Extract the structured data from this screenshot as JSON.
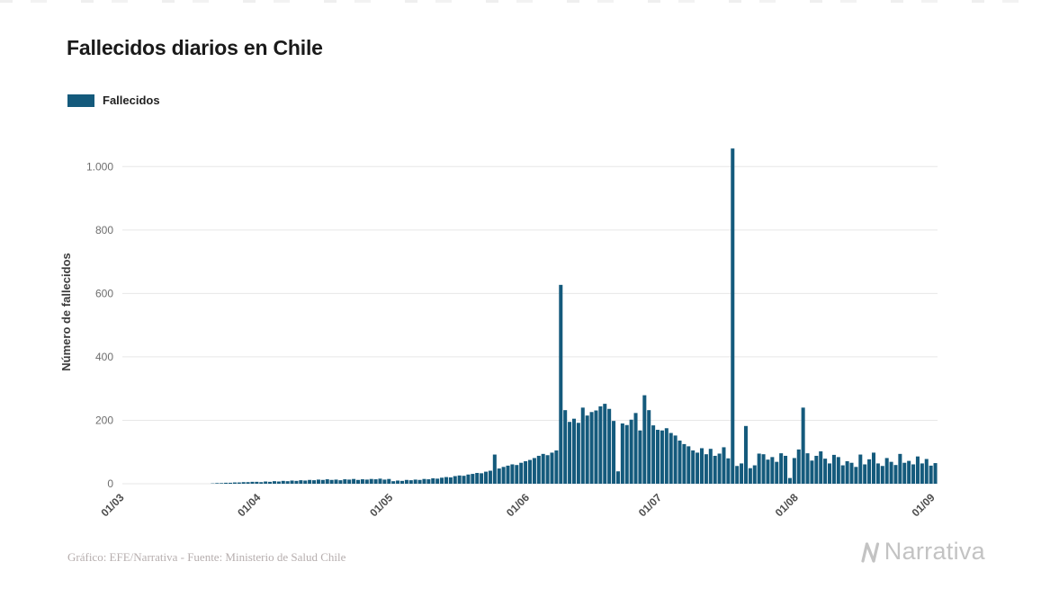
{
  "page": {
    "title": "Fallecidos diarios en Chile",
    "footer_credit": "Gráfico: EFE/Narrativa - Fuente: Ministerio de Salud Chile",
    "logo_text": "Narrativa"
  },
  "legend": {
    "label": "Fallecidos",
    "color": "#145a7c"
  },
  "chart_data": {
    "type": "bar",
    "title": "Fallecidos diarios en Chile",
    "xlabel": "",
    "ylabel": "Número de fallecidos",
    "series_name": "Fallecidos",
    "bar_color": "#145a7c",
    "grid": "horizontal",
    "legend_position": "top-left",
    "x_unit": "day",
    "x_start": "01/03",
    "x_end": "01/09",
    "ylim": [
      0,
      1100
    ],
    "yticks": [
      0,
      200,
      400,
      600,
      800,
      1000
    ],
    "ytick_labels": [
      "0",
      "200",
      "400",
      "600",
      "800",
      "1.000"
    ],
    "xtick_positions": [
      0,
      31,
      61,
      92,
      122,
      153,
      184
    ],
    "xtick_labels": [
      "01/03",
      "01/04",
      "01/05",
      "01/06",
      "01/07",
      "01/08",
      "01/09"
    ],
    "values": [
      0,
      0,
      0,
      0,
      0,
      0,
      0,
      0,
      0,
      0,
      0,
      0,
      0,
      0,
      0,
      0,
      0,
      0,
      0,
      0,
      1,
      2,
      2,
      3,
      3,
      4,
      4,
      5,
      5,
      6,
      6,
      5,
      7,
      6,
      8,
      7,
      9,
      8,
      10,
      9,
      11,
      10,
      12,
      11,
      13,
      12,
      14,
      12,
      13,
      11,
      14,
      13,
      15,
      12,
      14,
      13,
      15,
      14,
      16,
      13,
      15,
      8,
      10,
      9,
      12,
      11,
      13,
      12,
      15,
      14,
      17,
      16,
      19,
      21,
      20,
      24,
      26,
      25,
      29,
      31,
      34,
      33,
      38,
      41,
      92,
      48,
      53,
      57,
      61,
      59,
      66,
      71,
      75,
      81,
      88,
      94,
      90,
      98,
      105,
      627,
      232,
      195,
      205,
      192,
      240,
      215,
      226,
      231,
      244,
      252,
      236,
      198,
      39,
      190,
      185,
      202,
      223,
      168,
      279,
      232,
      184,
      170,
      168,
      175,
      160,
      152,
      136,
      125,
      118,
      105,
      98,
      112,
      93,
      110,
      88,
      95,
      115,
      80,
      1057,
      56,
      64,
      182,
      49,
      58,
      95,
      93,
      76,
      84,
      69,
      96,
      88,
      18,
      81,
      108,
      240,
      96,
      73,
      88,
      102,
      79,
      64,
      91,
      84,
      58,
      71,
      66,
      53,
      92,
      61,
      77,
      98,
      64,
      56,
      81,
      69,
      59,
      94,
      66,
      72,
      61,
      86,
      64,
      78,
      57,
      65
    ]
  }
}
